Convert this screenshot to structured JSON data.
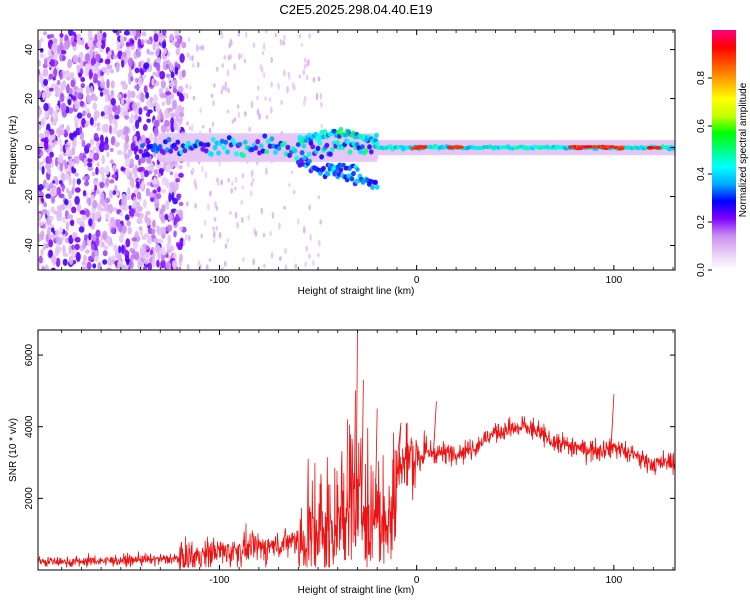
{
  "title": "C2E5.2025.298.04.40.E19",
  "chart_data": [
    {
      "type": "heatmap",
      "title": "",
      "xlabel": "Height of straight line (km)",
      "ylabel": "Frequency (Hz)",
      "xlim": [
        -192,
        131
      ],
      "ylim": [
        -50,
        48
      ],
      "xticks": [
        -100,
        0,
        100
      ],
      "yticks": [
        -40,
        -20,
        0,
        20,
        40
      ],
      "colorbar": {
        "label": "Normalized spectral amplitude",
        "range": [
          0.0,
          1.0
        ],
        "ticks": [
          0.0,
          0.2,
          0.4,
          0.6,
          0.8
        ],
        "colormap": [
          "#ffffff",
          "#e8ccf5",
          "#c98ff0",
          "#8000ff",
          "#0000ff",
          "#00aaff",
          "#00ffff",
          "#00ff80",
          "#00ff00",
          "#c8ff00",
          "#ffff00",
          "#ffaa00",
          "#ff5500",
          "#ff0000",
          "#ff0080"
        ]
      },
      "features": {
        "noise_region_x": [
          -192,
          -118
        ],
        "band_center_x": [
          -120,
          131
        ],
        "band_center_freq_hz": 0,
        "split_branch": {
          "x": [
            -60,
            -20
          ],
          "freq_hz": [
            2,
            -15
          ]
        },
        "peak_amplitude_locations_x": [
          2,
          20,
          80,
          95,
          102,
          120
        ]
      }
    },
    {
      "type": "line",
      "title": "",
      "xlabel": "Height of straight line (km)",
      "ylabel": "SNR (10 * v/v)",
      "xlim": [
        -192,
        131
      ],
      "ylim": [
        0,
        6700
      ],
      "xticks": [
        -100,
        0,
        100
      ],
      "yticks": [
        2000,
        4000,
        6000
      ],
      "series": [
        {
          "name": "SNR",
          "color": "#ee1111",
          "x": [
            -192,
            -180,
            -165,
            -150,
            -135,
            -120,
            -110,
            -100,
            -90,
            -80,
            -70,
            -60,
            -50,
            -45,
            -40,
            -35,
            -30,
            -25,
            -20,
            -15,
            -10,
            -5,
            0,
            5,
            10,
            20,
            30,
            40,
            50,
            55,
            60,
            70,
            80,
            90,
            95,
            100,
            110,
            120,
            131
          ],
          "values": [
            250,
            230,
            250,
            270,
            290,
            320,
            400,
            520,
            560,
            620,
            700,
            900,
            1200,
            1400,
            1650,
            2000,
            2100,
            1900,
            1700,
            1900,
            2700,
            3150,
            3150,
            3250,
            3300,
            3250,
            3450,
            3850,
            3950,
            4000,
            3900,
            3550,
            3450,
            3350,
            3400,
            3450,
            3200,
            2950,
            3000
          ]
        }
      ],
      "spike_values": [
        {
          "x": -49,
          "y": 2400
        },
        {
          "x": -35,
          "y": 4200
        },
        {
          "x": -31,
          "y": 5000
        },
        {
          "x": -30,
          "y": 6700
        },
        {
          "x": -27,
          "y": 5300
        },
        {
          "x": -20,
          "y": 4500
        },
        {
          "x": -8,
          "y": 4100
        },
        {
          "x": 10,
          "y": 4700
        },
        {
          "x": 100,
          "y": 4900
        }
      ]
    }
  ]
}
